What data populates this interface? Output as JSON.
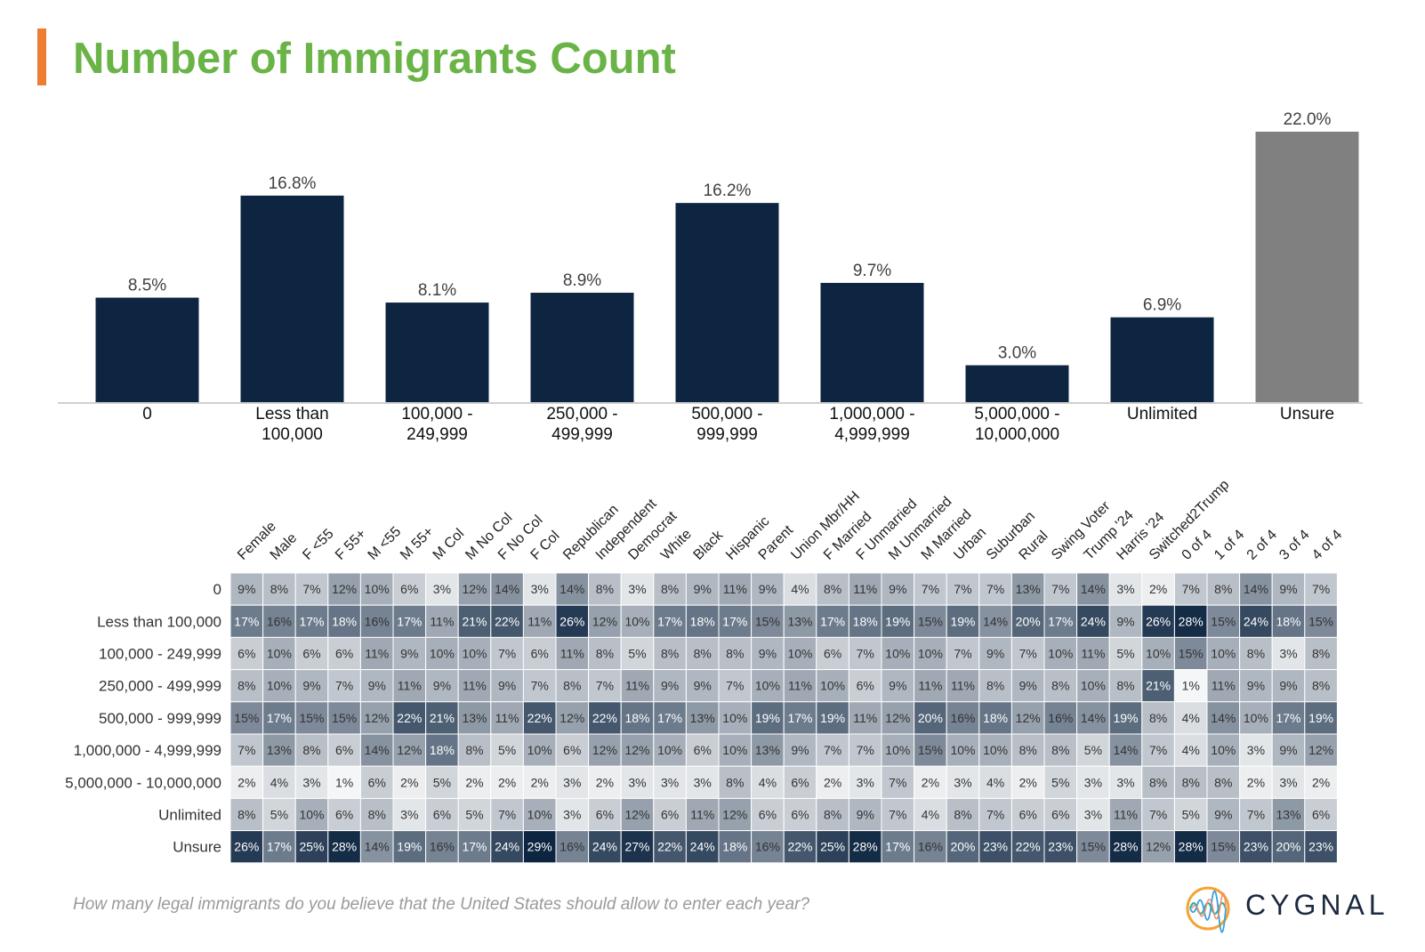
{
  "title": "Number of Immigrants Count",
  "question": "How many legal immigrants do you believe that the United States should allow to enter each year?",
  "logo": {
    "text": "CYGNAL"
  },
  "colors": {
    "title": "#6ab447",
    "accent": "#ed7d31",
    "bar": "#0d2541",
    "bar_unsure": "#808080",
    "heat_low": "#ffffff",
    "heat_high": "#0d2541",
    "axis": "#d0d0d0",
    "label": "#404040"
  },
  "chart_data": [
    {
      "type": "bar",
      "categories": [
        "0",
        "Less than 100,000",
        "100,000 - 249,999",
        "250,000 - 499,999",
        "500,000 - 999,999",
        "1,000,000 - 4,999,999",
        "5,000,000 - 10,000,000",
        "Unlimited",
        "Unsure"
      ],
      "category_lines": [
        [
          "0"
        ],
        [
          "Less than",
          "100,000"
        ],
        [
          "100,000 -",
          "249,999"
        ],
        [
          "250,000 -",
          "499,999"
        ],
        [
          "500,000 -",
          "999,999"
        ],
        [
          "1,000,000 -",
          "4,999,999"
        ],
        [
          "5,000,000 -",
          "10,000,000"
        ],
        [
          "Unlimited"
        ],
        [
          "Unsure"
        ]
      ],
      "values": [
        8.5,
        16.8,
        8.1,
        8.9,
        16.2,
        9.7,
        3.0,
        6.9,
        22.0
      ],
      "value_labels": [
        "8.5%",
        "16.8%",
        "8.1%",
        "8.9%",
        "16.2%",
        "9.7%",
        "3.0%",
        "6.9%",
        "22.0%"
      ],
      "ylim": [
        0,
        22
      ],
      "grid": false,
      "unit": "%"
    },
    {
      "type": "heatmap",
      "columns": [
        "Female",
        "Male",
        "F <55",
        "F 55+",
        "M <55",
        "M 55+",
        "M Col",
        "M No Col",
        "F No Col",
        "F Col",
        "Republican",
        "Independent",
        "Democrat",
        "White",
        "Black",
        "Hispanic",
        "Parent",
        "Union Mbr/HH",
        "F Married",
        "F Unmarried",
        "M Unmarried",
        "M Married",
        "Urban",
        "Suburban",
        "Rural",
        "Swing Voter",
        "Trump '24",
        "Harris '24",
        "Switched2Trump",
        "0 of 4",
        "1 of 4",
        "2 of 4",
        "3 of 4",
        "4 of 4"
      ],
      "rows": [
        "0",
        "Less than 100,000",
        "100,000 - 249,999",
        "250,000 - 499,999",
        "500,000 - 999,999",
        "1,000,000 - 4,999,999",
        "5,000,000 - 10,000,000",
        "Unlimited",
        "Unsure"
      ],
      "values": [
        [
          9,
          8,
          7,
          12,
          10,
          6,
          3,
          12,
          14,
          3,
          14,
          8,
          3,
          8,
          9,
          11,
          9,
          4,
          8,
          11,
          9,
          7,
          7,
          7,
          13,
          7,
          14,
          3,
          2,
          7,
          8,
          14,
          9,
          7
        ],
        [
          17,
          16,
          17,
          18,
          16,
          17,
          11,
          21,
          22,
          11,
          26,
          12,
          10,
          17,
          18,
          17,
          15,
          13,
          17,
          18,
          19,
          15,
          19,
          14,
          20,
          17,
          24,
          9,
          26,
          28,
          15,
          24,
          18,
          15
        ],
        [
          6,
          10,
          6,
          6,
          11,
          9,
          10,
          10,
          7,
          6,
          11,
          8,
          5,
          8,
          8,
          8,
          9,
          10,
          6,
          7,
          10,
          10,
          7,
          9,
          7,
          10,
          11,
          5,
          10,
          15,
          10,
          8,
          3,
          8
        ],
        [
          8,
          10,
          9,
          7,
          9,
          11,
          9,
          11,
          9,
          7,
          8,
          7,
          11,
          9,
          9,
          7,
          10,
          11,
          10,
          6,
          9,
          11,
          11,
          8,
          9,
          8,
          10,
          8,
          21,
          1,
          11,
          9,
          9,
          8
        ],
        [
          15,
          17,
          15,
          15,
          12,
          22,
          21,
          13,
          11,
          22,
          12,
          22,
          18,
          17,
          13,
          10,
          19,
          17,
          19,
          11,
          12,
          20,
          16,
          18,
          12,
          16,
          14,
          19,
          8,
          4,
          14,
          10,
          17,
          19
        ],
        [
          7,
          13,
          8,
          6,
          14,
          12,
          18,
          8,
          5,
          10,
          6,
          12,
          12,
          10,
          6,
          10,
          13,
          9,
          7,
          7,
          10,
          15,
          10,
          10,
          8,
          8,
          5,
          14,
          7,
          4,
          10,
          3,
          9,
          12
        ],
        [
          2,
          4,
          3,
          1,
          6,
          2,
          5,
          2,
          2,
          2,
          3,
          2,
          3,
          3,
          3,
          8,
          4,
          6,
          2,
          3,
          7,
          2,
          3,
          4,
          2,
          5,
          3,
          3,
          8,
          8,
          8,
          2,
          3,
          2
        ],
        [
          8,
          5,
          10,
          6,
          8,
          3,
          6,
          5,
          7,
          10,
          3,
          6,
          12,
          6,
          11,
          12,
          6,
          6,
          8,
          9,
          7,
          4,
          8,
          7,
          6,
          6,
          3,
          11,
          7,
          5,
          9,
          7,
          13,
          6
        ],
        [
          26,
          17,
          25,
          28,
          14,
          19,
          16,
          17,
          24,
          29,
          16,
          24,
          27,
          22,
          24,
          18,
          16,
          22,
          25,
          28,
          17,
          16,
          20,
          23,
          22,
          23,
          15,
          28,
          12,
          28,
          15,
          23,
          20,
          23
        ]
      ],
      "unit": "%",
      "color_scale": "white-to-navy"
    }
  ]
}
